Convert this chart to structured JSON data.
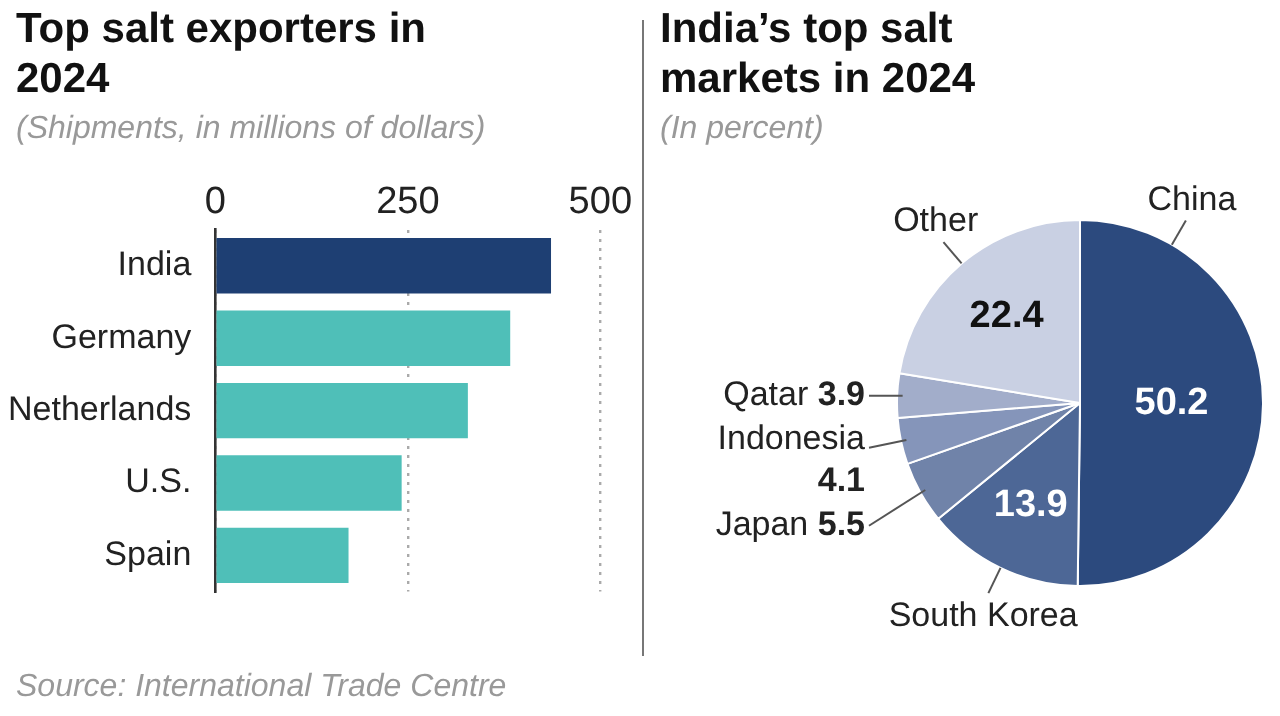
{
  "chart_data": [
    {
      "type": "bar",
      "orientation": "horizontal",
      "title": "Top salt exporters in 2024",
      "subtitle": "(Shipments, in millions of dollars)",
      "categories": [
        "India",
        "Germany",
        "Netherlands",
        "U.S.",
        "Spain"
      ],
      "values": [
        436,
        383,
        328,
        242,
        173
      ],
      "colors": [
        "#1e3f73",
        "#4fbfb8",
        "#4fbfb8",
        "#4fbfb8",
        "#4fbfb8"
      ],
      "xlim": [
        0,
        500
      ],
      "xticks": [
        0,
        250,
        500
      ],
      "grid": "x",
      "annotations": [
        "Source: International Trade Centre"
      ]
    },
    {
      "type": "pie",
      "title": "India’s top salt markets in 2024",
      "subtitle": "(In percent)",
      "categories": [
        "China",
        "South Korea",
        "Japan",
        "Indonesia",
        "Qatar",
        "Other"
      ],
      "values": [
        50.2,
        13.9,
        5.5,
        4.1,
        3.9,
        22.4
      ],
      "colors": [
        "#2c4a7e",
        "#4d6796",
        "#7083a9",
        "#8595ba",
        "#a2adca",
        "#c9d0e3"
      ],
      "data_labels": true
    }
  ]
}
